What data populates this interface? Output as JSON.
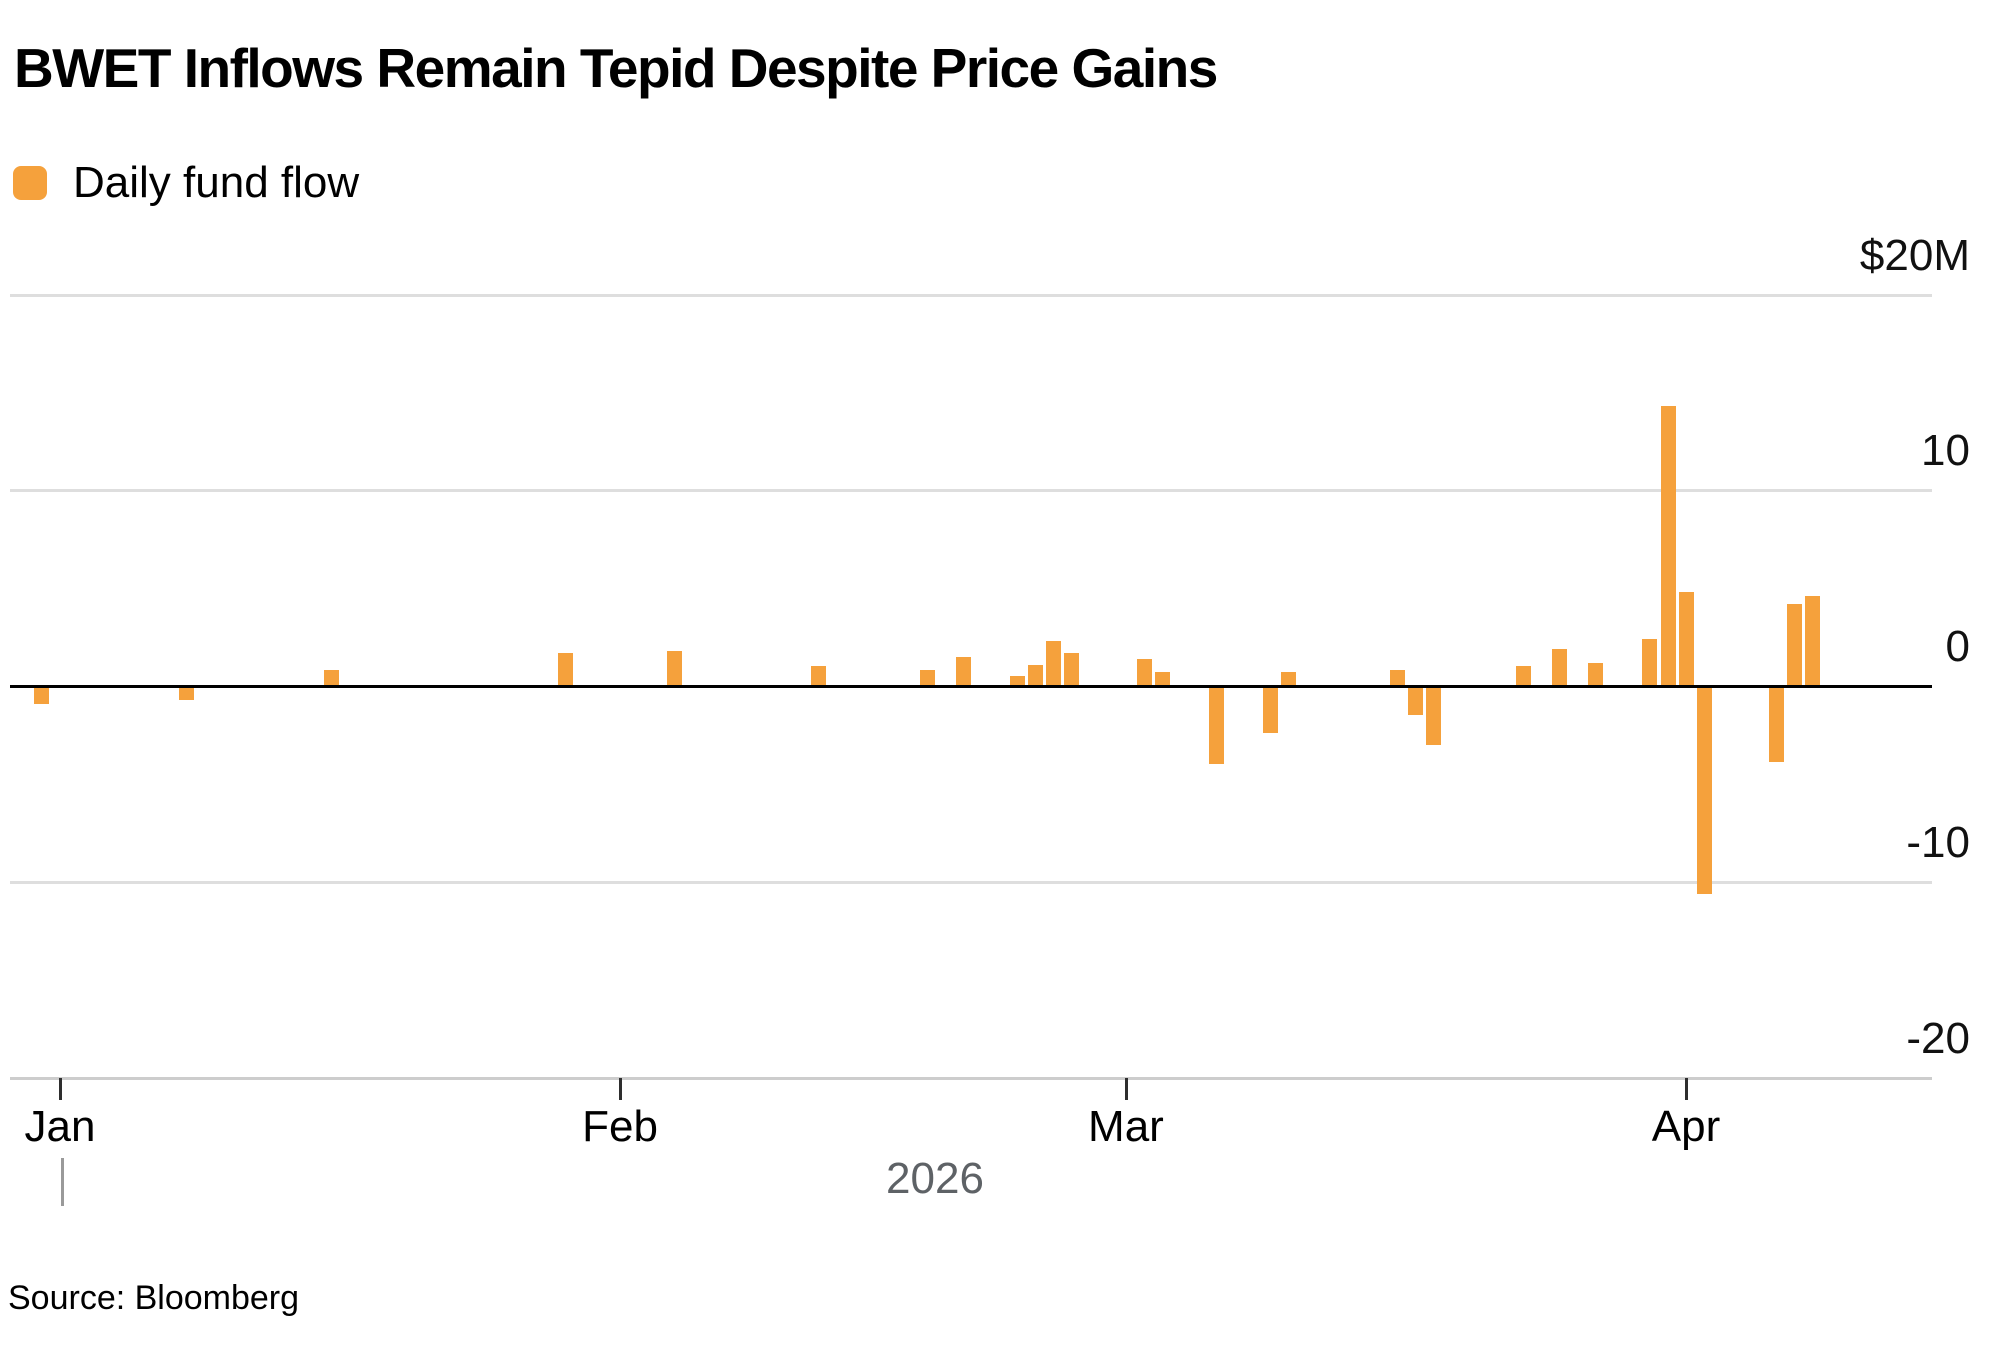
{
  "header": {
    "title": "BWET Inflows Remain Tepid Despite Price Gains"
  },
  "legend": {
    "label": "Daily fund flow",
    "swatch_color": "#F5A13C"
  },
  "source": {
    "label": "Source: Bloomberg"
  },
  "colors": {
    "bar": "#F5A13C",
    "gridline": "#DEDEDE",
    "bottom_axis": "#CDCDCD",
    "zero_line": "#000000",
    "text": "#000000",
    "muted_text": "#5E6266"
  },
  "chart_data": {
    "type": "bar",
    "title": "BWET Inflows Remain Tepid Despite Price Gains",
    "series_name": "Daily fund flow",
    "unit": "USD millions",
    "ylim": [
      -20,
      20
    ],
    "grid": true,
    "legend_position": "top-left",
    "yticks": [
      {
        "label": "$20M",
        "value": 20
      },
      {
        "label": "10",
        "value": 10
      },
      {
        "label": "0",
        "value": 0
      },
      {
        "label": "-10",
        "value": -10
      },
      {
        "label": "-20",
        "value": -20
      }
    ],
    "xticks": [
      {
        "label": "Jan",
        "date": "2026-01-01"
      },
      {
        "label": "Feb",
        "date": "2026-02-01"
      },
      {
        "label": "Mar",
        "date": "2026-03-01"
      },
      {
        "label": "Apr",
        "date": "2026-04-01"
      }
    ],
    "year_label": "2026",
    "points": [
      {
        "date": "2025-12-31",
        "value": -0.9
      },
      {
        "date": "2026-01-08",
        "value": -0.7
      },
      {
        "date": "2026-01-16",
        "value": 0.8
      },
      {
        "date": "2026-01-29",
        "value": 1.7
      },
      {
        "date": "2026-02-04",
        "value": 1.8
      },
      {
        "date": "2026-02-12",
        "value": 1.0
      },
      {
        "date": "2026-02-18",
        "value": 0.8
      },
      {
        "date": "2026-02-20",
        "value": 1.5
      },
      {
        "date": "2026-02-23",
        "value": 0.5
      },
      {
        "date": "2026-02-24",
        "value": 1.1
      },
      {
        "date": "2026-02-25",
        "value": 2.3
      },
      {
        "date": "2026-02-26",
        "value": 1.7
      },
      {
        "date": "2026-03-02",
        "value": 1.4
      },
      {
        "date": "2026-03-03",
        "value": 0.7
      },
      {
        "date": "2026-03-06",
        "value": -4.0
      },
      {
        "date": "2026-03-09",
        "value": -2.4
      },
      {
        "date": "2026-03-10",
        "value": 0.7
      },
      {
        "date": "2026-03-16",
        "value": 0.8
      },
      {
        "date": "2026-03-17",
        "value": -1.5
      },
      {
        "date": "2026-03-18",
        "value": -3.0
      },
      {
        "date": "2026-03-23",
        "value": 1.0
      },
      {
        "date": "2026-03-25",
        "value": 1.9
      },
      {
        "date": "2026-03-27",
        "value": 1.2
      },
      {
        "date": "2026-03-30",
        "value": 2.4
      },
      {
        "date": "2026-03-31",
        "value": 14.3
      },
      {
        "date": "2026-04-01",
        "value": 4.8
      },
      {
        "date": "2026-04-02",
        "value": -10.6
      },
      {
        "date": "2026-04-06",
        "value": -3.9
      },
      {
        "date": "2026-04-07",
        "value": 4.2
      },
      {
        "date": "2026-04-08",
        "value": 4.6
      }
    ]
  }
}
